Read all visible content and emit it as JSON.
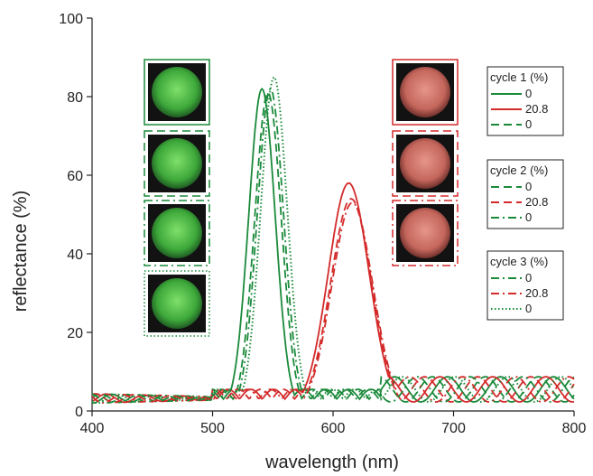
{
  "chart_data": {
    "type": "line",
    "title": "",
    "xlabel": "wavelength (nm)",
    "ylabel": "reflectance (%)",
    "xlim": [
      400,
      800
    ],
    "ylim": [
      0,
      100
    ],
    "xticks": [
      400,
      500,
      600,
      700,
      800
    ],
    "yticks": [
      0,
      20,
      40,
      60,
      80,
      100
    ],
    "grid": false,
    "legend_position": "right",
    "colors": {
      "green": "#1a8a3a",
      "red": "#d42a2a",
      "axis": "#222222"
    },
    "legend_groups": [
      {
        "title": "cycle 1 (%)",
        "entries": [
          {
            "label": "0",
            "color": "green",
            "dash": "solid"
          },
          {
            "label": "20.8",
            "color": "red",
            "dash": "solid"
          },
          {
            "label": "0",
            "color": "green",
            "dash": "dashed"
          }
        ]
      },
      {
        "title": "cycle 2 (%)",
        "entries": [
          {
            "label": "0",
            "color": "green",
            "dash": "dashed"
          },
          {
            "label": "20.8",
            "color": "red",
            "dash": "dashed"
          },
          {
            "label": "0",
            "color": "green",
            "dash": "dashdot"
          }
        ]
      },
      {
        "title": "cycle 3 (%)",
        "entries": [
          {
            "label": "0",
            "color": "green",
            "dash": "dashdot"
          },
          {
            "label": "20.8",
            "color": "red",
            "dash": "dashdot"
          },
          {
            "label": "0",
            "color": "green",
            "dash": "dotted"
          }
        ]
      }
    ],
    "series": [
      {
        "color": "green",
        "dash": "solid",
        "peak_x": 541,
        "peak_y": 82,
        "width": 11
      },
      {
        "color": "red",
        "dash": "solid",
        "peak_x": 613,
        "peak_y": 58,
        "width": 17
      },
      {
        "color": "green",
        "dash": "dashed",
        "peak_x": 546,
        "peak_y": 81,
        "width": 11
      },
      {
        "color": "red",
        "dash": "dashed",
        "peak_x": 615,
        "peak_y": 54,
        "width": 17
      },
      {
        "color": "green",
        "dash": "dashdot",
        "peak_x": 548,
        "peak_y": 82,
        "width": 11
      },
      {
        "color": "red",
        "dash": "dashdot",
        "peak_x": 616,
        "peak_y": 53,
        "width": 17
      },
      {
        "color": "green",
        "dash": "dotted",
        "peak_x": 551,
        "peak_y": 85,
        "width": 11
      }
    ],
    "inset_images": [
      {
        "name": "green-sample-cycle1",
        "tint": "green",
        "frame_dash": "solid"
      },
      {
        "name": "green-sample-cycle1b",
        "tint": "green",
        "frame_dash": "dashed"
      },
      {
        "name": "green-sample-cycle2",
        "tint": "green",
        "frame_dash": "dashdot"
      },
      {
        "name": "green-sample-cycle3",
        "tint": "green",
        "frame_dash": "dotted"
      },
      {
        "name": "red-sample-cycle1",
        "tint": "red",
        "frame_dash": "solid"
      },
      {
        "name": "red-sample-cycle2",
        "tint": "red",
        "frame_dash": "dashed"
      },
      {
        "name": "red-sample-cycle3",
        "tint": "red",
        "frame_dash": "dashdot"
      }
    ]
  }
}
